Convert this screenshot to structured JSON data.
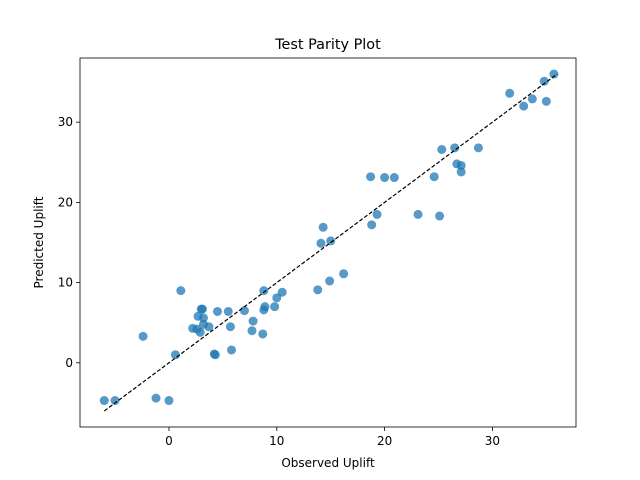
{
  "chart_data": {
    "type": "scatter",
    "title": "Test Parity Plot",
    "xlabel": "Observed Uplift",
    "ylabel": "Predicted Uplift",
    "xlim": [
      -8.25,
      37.75
    ],
    "ylim": [
      -8.0,
      38.0
    ],
    "xticks": [
      0,
      10,
      20,
      30
    ],
    "yticks": [
      0,
      10,
      20,
      30
    ],
    "grid": false,
    "point_color": "#1f77b4",
    "parity_line": {
      "from": [
        -6,
        -6
      ],
      "to": [
        36,
        36
      ],
      "color": "#000000",
      "style": "dashed"
    },
    "points": [
      {
        "x": -6.0,
        "y": -4.7
      },
      {
        "x": -5.0,
        "y": -4.7
      },
      {
        "x": -2.4,
        "y": 3.3
      },
      {
        "x": -1.2,
        "y": -4.4
      },
      {
        "x": 0.0,
        "y": -4.7
      },
      {
        "x": 0.6,
        "y": 1.0
      },
      {
        "x": 1.1,
        "y": 9.0
      },
      {
        "x": 2.2,
        "y": 4.3
      },
      {
        "x": 2.6,
        "y": 4.2
      },
      {
        "x": 2.7,
        "y": 5.8
      },
      {
        "x": 2.9,
        "y": 3.8
      },
      {
        "x": 3.0,
        "y": 6.7
      },
      {
        "x": 3.1,
        "y": 6.7
      },
      {
        "x": 3.2,
        "y": 5.6
      },
      {
        "x": 3.2,
        "y": 4.8
      },
      {
        "x": 3.7,
        "y": 4.5
      },
      {
        "x": 4.2,
        "y": 1.1
      },
      {
        "x": 4.3,
        "y": 1.0
      },
      {
        "x": 4.5,
        "y": 6.4
      },
      {
        "x": 5.5,
        "y": 6.4
      },
      {
        "x": 5.7,
        "y": 4.5
      },
      {
        "x": 5.8,
        "y": 1.6
      },
      {
        "x": 7.0,
        "y": 6.5
      },
      {
        "x": 7.7,
        "y": 4.0
      },
      {
        "x": 7.8,
        "y": 5.2
      },
      {
        "x": 8.7,
        "y": 3.6
      },
      {
        "x": 8.8,
        "y": 6.6
      },
      {
        "x": 8.8,
        "y": 9.0
      },
      {
        "x": 8.9,
        "y": 7.0
      },
      {
        "x": 9.8,
        "y": 7.0
      },
      {
        "x": 10.0,
        "y": 8.1
      },
      {
        "x": 10.5,
        "y": 8.8
      },
      {
        "x": 13.8,
        "y": 9.1
      },
      {
        "x": 14.1,
        "y": 14.9
      },
      {
        "x": 14.3,
        "y": 16.9
      },
      {
        "x": 14.9,
        "y": 10.2
      },
      {
        "x": 15.0,
        "y": 15.2
      },
      {
        "x": 16.2,
        "y": 11.1
      },
      {
        "x": 18.7,
        "y": 23.2
      },
      {
        "x": 18.8,
        "y": 17.2
      },
      {
        "x": 19.3,
        "y": 18.5
      },
      {
        "x": 20.0,
        "y": 23.1
      },
      {
        "x": 20.9,
        "y": 23.1
      },
      {
        "x": 23.1,
        "y": 18.5
      },
      {
        "x": 24.6,
        "y": 23.2
      },
      {
        "x": 25.1,
        "y": 18.3
      },
      {
        "x": 25.3,
        "y": 26.6
      },
      {
        "x": 26.5,
        "y": 26.8
      },
      {
        "x": 26.7,
        "y": 24.8
      },
      {
        "x": 27.1,
        "y": 24.6
      },
      {
        "x": 27.1,
        "y": 23.8
      },
      {
        "x": 28.7,
        "y": 26.8
      },
      {
        "x": 31.6,
        "y": 33.6
      },
      {
        "x": 32.9,
        "y": 32.0
      },
      {
        "x": 33.7,
        "y": 32.9
      },
      {
        "x": 34.8,
        "y": 35.1
      },
      {
        "x": 35.0,
        "y": 32.6
      },
      {
        "x": 35.7,
        "y": 36.0
      }
    ]
  }
}
